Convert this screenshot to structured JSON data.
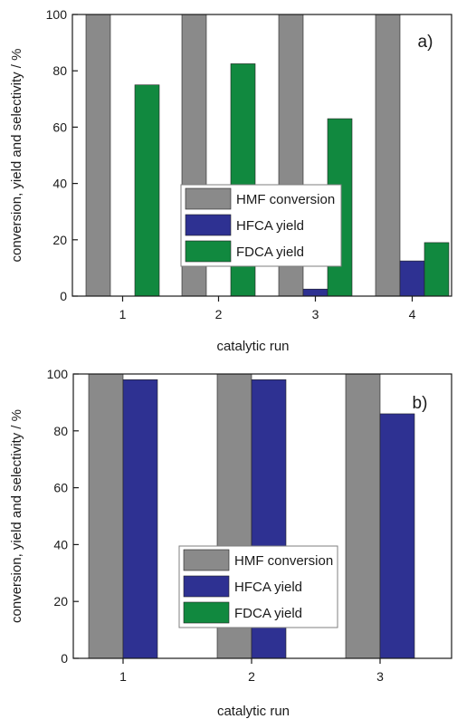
{
  "colors": {
    "hmf": "#8a8a8a",
    "hfca": "#2e3192",
    "fdca": "#11893f",
    "axis": "#1a1a1a",
    "legend_border": "#7f7f7f"
  },
  "chart_data": [
    {
      "type": "bar",
      "panel_label": "a)",
      "categories": [
        "1",
        "2",
        "3",
        "4"
      ],
      "series": [
        {
          "name": "HMF conversion",
          "values": [
            100,
            100,
            100,
            100
          ]
        },
        {
          "name": "HFCA yield",
          "values": [
            0,
            0,
            2.5,
            12.5
          ]
        },
        {
          "name": "FDCA yield",
          "values": [
            75,
            82.5,
            63,
            19
          ]
        }
      ],
      "xlabel": "catalytic run",
      "ylabel": "conversion, yield and selectivity / %",
      "ylim": [
        0,
        100
      ],
      "yticks": [
        "0",
        "20",
        "40",
        "60",
        "80",
        "100"
      ],
      "legend": "center",
      "grid": false
    },
    {
      "type": "bar",
      "panel_label": "b)",
      "categories": [
        "1",
        "2",
        "3"
      ],
      "series": [
        {
          "name": "HMF conversion",
          "values": [
            100,
            100,
            100
          ]
        },
        {
          "name": "HFCA yield",
          "values": [
            98,
            98,
            86
          ]
        },
        {
          "name": "FDCA yield",
          "values": [
            0,
            0,
            0
          ]
        }
      ],
      "xlabel": "catalytic run",
      "ylabel": "conversion, yield and selectivity / %",
      "ylim": [
        0,
        100
      ],
      "yticks": [
        "0",
        "20",
        "40",
        "60",
        "80",
        "100"
      ],
      "legend": "bottom-center",
      "grid": false
    }
  ]
}
